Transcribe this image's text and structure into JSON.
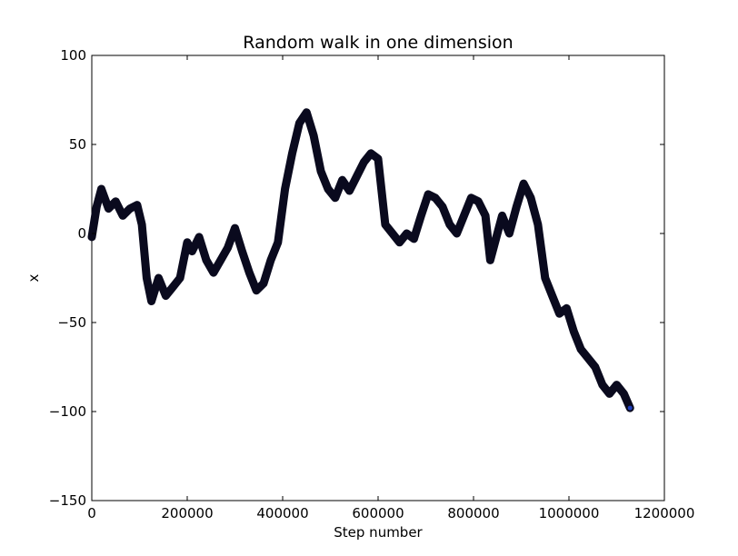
{
  "chart_data": {
    "type": "line",
    "title": "Random walk in one dimension",
    "xlabel": "Step number",
    "ylabel": "x",
    "xlim": [
      0,
      1200000
    ],
    "ylim": [
      -150,
      100
    ],
    "xticks": [
      0,
      200000,
      400000,
      600000,
      800000,
      1000000,
      1200000
    ],
    "xtick_labels": [
      "0",
      "200000",
      "400000",
      "600000",
      "800000",
      "1000000",
      "1200000"
    ],
    "yticks": [
      -150,
      -100,
      -50,
      0,
      50,
      100
    ],
    "ytick_labels": [
      "−150",
      "−100",
      "−50",
      "0",
      "50",
      "100"
    ],
    "grid": false,
    "legend": "none",
    "colors": {
      "line": "#0a0a1e",
      "marker": "#1f3fbf"
    },
    "series": [
      {
        "x": [
          0,
          10000,
          20000,
          35000,
          50000,
          65000,
          80000,
          95000,
          105000,
          115000,
          125000,
          140000,
          155000,
          170000,
          185000,
          200000,
          210000,
          225000,
          240000,
          255000,
          270000,
          285000,
          300000,
          315000,
          330000,
          345000,
          360000,
          375000,
          390000,
          405000,
          420000,
          435000,
          450000,
          465000,
          480000,
          495000,
          510000,
          525000,
          540000,
          555000,
          570000,
          585000,
          600000,
          615000,
          630000,
          645000,
          660000,
          675000,
          690000,
          705000,
          720000,
          735000,
          750000,
          765000,
          780000,
          795000,
          810000,
          825000,
          835000,
          845000,
          860000,
          875000,
          890000,
          905000,
          920000,
          935000,
          950000,
          965000,
          980000,
          995000,
          1010000,
          1025000,
          1040000,
          1055000,
          1070000,
          1085000,
          1100000,
          1115000,
          1128000
        ],
        "y": [
          -2,
          15,
          25,
          14,
          18,
          10,
          14,
          16,
          5,
          -25,
          -38,
          -25,
          -35,
          -30,
          -25,
          -5,
          -10,
          -2,
          -15,
          -22,
          -15,
          -8,
          3,
          -10,
          -22,
          -32,
          -28,
          -15,
          -5,
          25,
          45,
          62,
          68,
          55,
          35,
          25,
          20,
          30,
          24,
          32,
          40,
          45,
          42,
          5,
          0,
          -5,
          0,
          -3,
          10,
          22,
          20,
          15,
          5,
          0,
          10,
          20,
          18,
          10,
          -15,
          -5,
          10,
          0,
          15,
          28,
          20,
          5,
          -25,
          -35,
          -45,
          -42,
          -55,
          -65,
          -70,
          -75,
          -85,
          -90,
          -85,
          -90,
          -98
        ]
      }
    ]
  }
}
